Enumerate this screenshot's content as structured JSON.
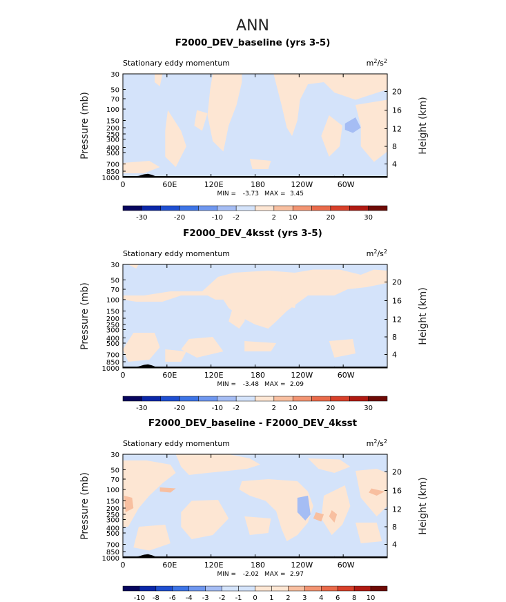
{
  "figure_title": "ANN",
  "colors": {
    "blues": [
      "#08065e",
      "#0b27a8",
      "#1f4fd1",
      "#3d74e6",
      "#6f97ef",
      "#a5bdf4",
      "#d4e3fa"
    ],
    "reds": [
      "#fde6d3",
      "#f8bfa0",
      "#f29472",
      "#e96a4a",
      "#d8402a",
      "#b01a12",
      "#6e0a06"
    ],
    "topo": "#000000"
  },
  "chart_data": [
    {
      "type": "heatmap",
      "title": "F2000_DEV_baseline (yrs 3-5)",
      "variable": "Stationary eddy momentum",
      "units": "m²/s²",
      "units_base": "m",
      "units_exp1": "2",
      "units_mid": "/s",
      "units_exp2": "2",
      "ylabel_left": "Pressure (mb)",
      "ylabel_right": "Height (km)",
      "pressure_ticks": [
        "30",
        "50",
        "70",
        "100",
        "150",
        "200",
        "250",
        "300",
        "400",
        "500",
        "700",
        "850",
        "1000"
      ],
      "height_ticks": [
        "20",
        "16",
        "12",
        "8",
        "4"
      ],
      "lon_ticks": [
        "0",
        "60E",
        "120E",
        "180",
        "120W",
        "60W"
      ],
      "min_label": "MIN =",
      "min_value": "-3.73",
      "max_label": "MAX =",
      "max_value": "3.45",
      "colorbar_labels": [
        "-30",
        "-20",
        "-10",
        "-2",
        "2",
        "10",
        "20",
        "30"
      ]
    },
    {
      "type": "heatmap",
      "title": "F2000_DEV_4ksst (yrs 3-5)",
      "variable": "Stationary eddy momentum",
      "units": "m²/s²",
      "units_base": "m",
      "units_exp1": "2",
      "units_mid": "/s",
      "units_exp2": "2",
      "ylabel_left": "Pressure (mb)",
      "ylabel_right": "Height (km)",
      "pressure_ticks": [
        "30",
        "50",
        "70",
        "100",
        "150",
        "200",
        "250",
        "300",
        "400",
        "500",
        "700",
        "850",
        "1000"
      ],
      "height_ticks": [
        "20",
        "16",
        "12",
        "8",
        "4"
      ],
      "lon_ticks": [
        "0",
        "60E",
        "120E",
        "180",
        "120W",
        "60W"
      ],
      "min_label": "MIN =",
      "min_value": "-3.48",
      "max_label": "MAX =",
      "max_value": "2.09",
      "colorbar_labels": [
        "-30",
        "-20",
        "-10",
        "-2",
        "2",
        "10",
        "20",
        "30"
      ]
    },
    {
      "type": "heatmap",
      "title": "F2000_DEV_baseline - F2000_DEV_4ksst",
      "variable": "Stationary eddy momentum",
      "units": "m²/s²",
      "units_base": "m",
      "units_exp1": "2",
      "units_mid": "/s",
      "units_exp2": "2",
      "ylabel_left": "Pressure (mb)",
      "ylabel_right": "Height (km)",
      "pressure_ticks": [
        "30",
        "50",
        "70",
        "100",
        "150",
        "200",
        "250",
        "300",
        "400",
        "500",
        "700",
        "850",
        "1000"
      ],
      "height_ticks": [
        "20",
        "16",
        "12",
        "8",
        "4"
      ],
      "lon_ticks": [
        "0",
        "60E",
        "120E",
        "180",
        "120W",
        "60W"
      ],
      "min_label": "MIN =",
      "min_value": "-2.02",
      "max_label": "MAX =",
      "max_value": "2.97",
      "colorbar_labels": [
        "-10",
        "-8",
        "-6",
        "-4",
        "-3",
        "-2",
        "-1",
        "0",
        "1",
        "2",
        "3",
        "4",
        "6",
        "8",
        "10"
      ]
    }
  ]
}
